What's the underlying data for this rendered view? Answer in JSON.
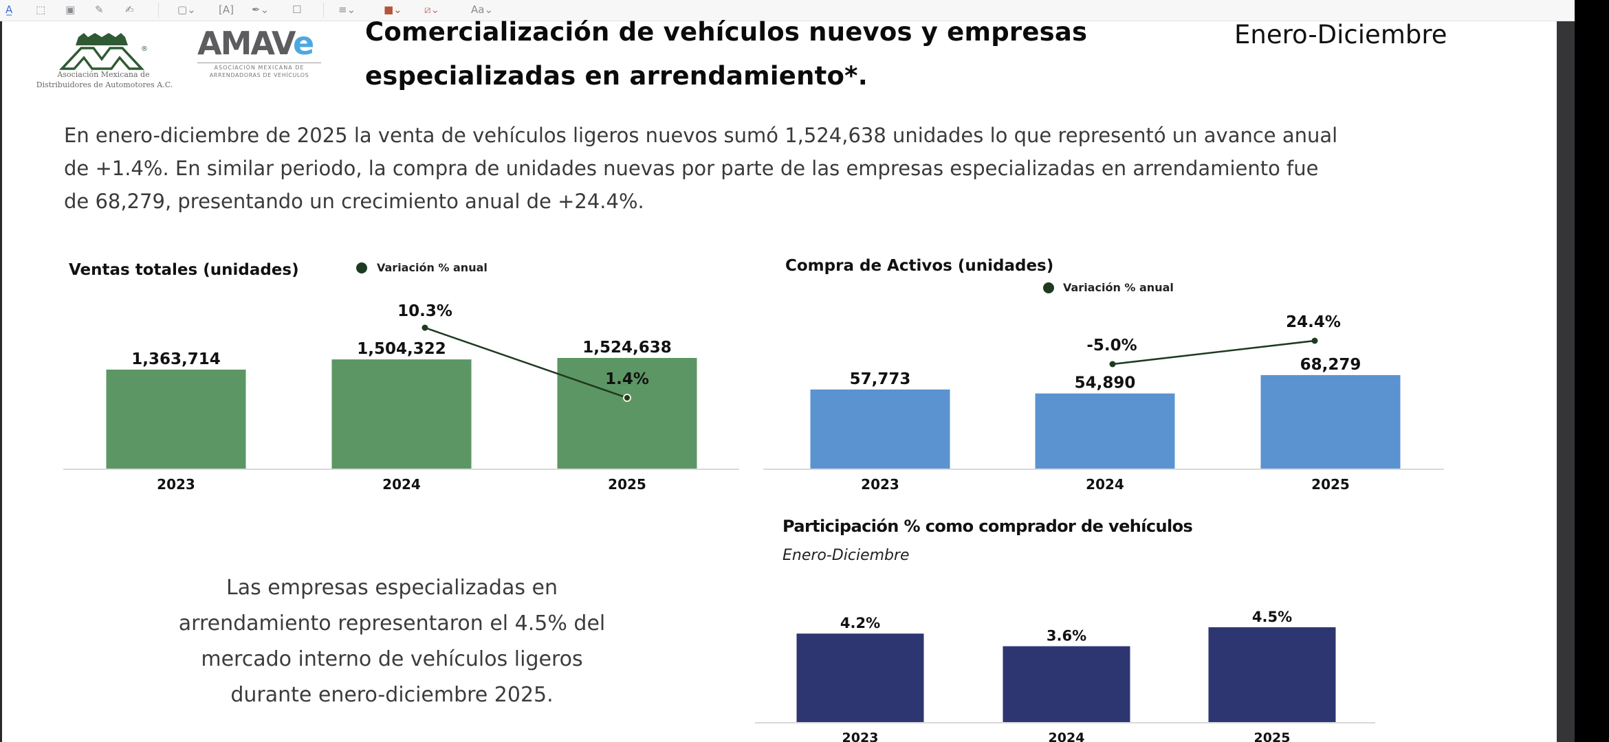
{
  "toolbar": {
    "icons": [
      {
        "name": "text-select-icon",
        "glyph": "A̲"
      },
      {
        "name": "area-select-icon",
        "glyph": "⬚"
      },
      {
        "name": "stamp-icon",
        "glyph": "▣"
      },
      {
        "name": "pen-icon",
        "glyph": "✎"
      },
      {
        "name": "highlighter-icon",
        "glyph": "✍"
      },
      {
        "name": "shapes-icon",
        "glyph": "▢⌄"
      },
      {
        "name": "text-box-icon",
        "glyph": "[A]"
      },
      {
        "name": "signature-icon",
        "glyph": "✒⌄"
      },
      {
        "name": "note-icon",
        "glyph": "☐"
      },
      {
        "name": "line-style-icon",
        "glyph": "≡⌄"
      },
      {
        "name": "border-color-icon",
        "glyph": "■⌄"
      },
      {
        "name": "fill-color-icon",
        "glyph": "⧄⌄"
      },
      {
        "name": "font-icon",
        "glyph": "Aa⌄"
      }
    ]
  },
  "logos": {
    "amda": {
      "mark": "AMDA",
      "registered": "®",
      "line1": "Asociación Mexicana de",
      "line2": "Distribuidores de Automotores A.C."
    },
    "amave": {
      "mark_main": "AMAV",
      "mark_accent": "e",
      "line1": "ASOCIACIÓN MEXICANA DE",
      "line2": "ARRENDADORAS DE VEHÍCULOS"
    }
  },
  "header": {
    "title_line1": "Comercialización de vehículos nuevos y empresas",
    "title_line2": "especializadas en arrendamiento*.",
    "period": "Enero-Diciembre"
  },
  "intro": {
    "lines": [
      "En enero-diciembre de 2025 la venta de vehículos ligeros nuevos sumó 1,524,638 unidades lo que representó un avance anual",
      "de +1.4%. En similar periodo, la compra de unidades nuevas por parte de las empresas especializadas en arrendamiento fue",
      "de 68,279, presentando un crecimiento anual de +24.4%."
    ]
  },
  "summary": {
    "lines": [
      "Las empresas especializadas en",
      "arrendamiento representaron el 4.5% del",
      "mercado interno de vehículos ligeros",
      "durante enero-diciembre 2025."
    ]
  },
  "colors": {
    "ventas_bar": "#5c9664",
    "compra_bar": "#5b93d0",
    "participacion_bar": "#2e3672",
    "variation_line": "#1e3a20",
    "baseline": "#d9d9d9"
  },
  "chart_data": [
    {
      "id": "ventas",
      "type": "bar",
      "title": "Ventas totales (unidades)",
      "legend": "Variación % anual",
      "legend_position": "top-right",
      "categories": [
        "2023",
        "2024",
        "2025"
      ],
      "series": [
        {
          "name": "Ventas totales",
          "values": [
            1363714,
            1504322,
            1524638
          ],
          "labels": [
            "1,363,714",
            "1,504,322",
            "1,524,638"
          ]
        }
      ],
      "line_series": {
        "name": "Variación % anual",
        "type": "line",
        "categories": [
          "2024",
          "2025"
        ],
        "values": [
          10.3,
          1.4
        ],
        "labels": [
          "10.3%",
          "1.4%"
        ]
      },
      "xlabel": "",
      "ylabel": "",
      "grid": false
    },
    {
      "id": "compra",
      "type": "bar",
      "title": "Compra de Activos (unidades)",
      "legend": "Variación % anual",
      "legend_position": "top-center",
      "categories": [
        "2023",
        "2024",
        "2025"
      ],
      "series": [
        {
          "name": "Compra de Activos",
          "values": [
            57773,
            54890,
            68279
          ],
          "labels": [
            "57,773",
            "54,890",
            "68,279"
          ]
        }
      ],
      "line_series": {
        "name": "Variación % anual",
        "type": "line",
        "categories": [
          "2024",
          "2025"
        ],
        "values": [
          -5.0,
          24.4
        ],
        "labels": [
          "-5.0%",
          "24.4%"
        ]
      },
      "xlabel": "",
      "ylabel": "",
      "grid": false
    },
    {
      "id": "participacion",
      "type": "bar",
      "title": "Participación % como comprador de vehículos",
      "subtitle": "Enero-Diciembre",
      "categories": [
        "2023",
        "2024",
        "2025"
      ],
      "series": [
        {
          "name": "Participación %",
          "values": [
            4.2,
            3.6,
            4.5
          ],
          "labels": [
            "4.2%",
            "3.6%",
            "4.5%"
          ]
        }
      ],
      "xlabel": "",
      "ylabel": "",
      "grid": false
    }
  ]
}
